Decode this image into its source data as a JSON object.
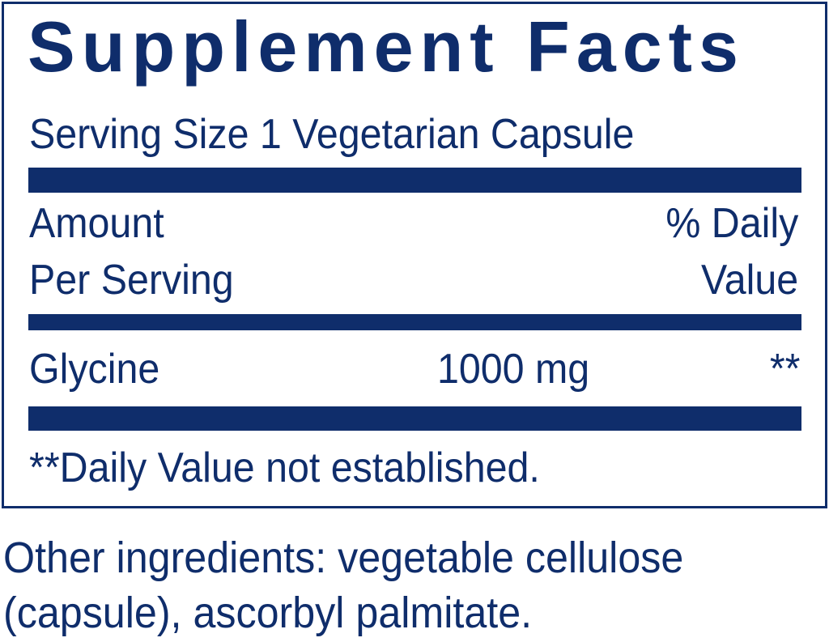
{
  "title": "Supplement Facts",
  "serving_size": "Serving Size 1 Vegetarian Capsule",
  "header": {
    "amount_line1": "Amount",
    "amount_line2": "Per Serving",
    "dv_line1": "% Daily",
    "dv_line2": "Value"
  },
  "rows": [
    {
      "name": "Glycine",
      "amount": "1000 mg",
      "dv": "**"
    }
  ],
  "footnote": "**Daily Value not established.",
  "other_ingredients": {
    "line1": "Other ingredients: vegetable cellulose",
    "line2": "(capsule), ascorbyl palmitate."
  },
  "colors": {
    "text": "#0f2d6b"
  }
}
